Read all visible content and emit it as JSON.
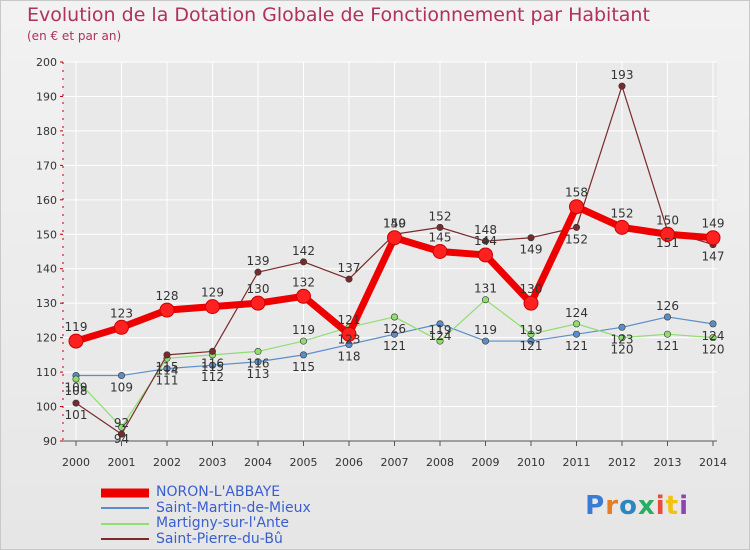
{
  "header": {
    "title": "Evolution de la Dotation Globale de Fonctionnement par Habitant",
    "subtitle": "(en € et par an)"
  },
  "brand": {
    "text": "Proxiti"
  },
  "chart_data": {
    "type": "line",
    "x": [
      2000,
      2001,
      2002,
      2003,
      2004,
      2005,
      2006,
      2007,
      2008,
      2009,
      2010,
      2011,
      2012,
      2013,
      2014
    ],
    "ylim": [
      90,
      200
    ],
    "yticks": [
      90,
      100,
      110,
      120,
      130,
      140,
      150,
      160,
      170,
      180,
      190,
      200
    ],
    "grid": true,
    "legend_position": "bottom-left",
    "series": [
      {
        "name": "NORON-L'ABBAYE",
        "color": "#ee0000",
        "values": [
          119,
          123,
          128,
          129,
          130,
          132,
          121,
          149,
          145,
          144,
          130,
          158,
          152,
          150,
          149
        ]
      },
      {
        "name": "Saint-Martin-de-Mieux",
        "color": "#5b8ec9",
        "values": [
          109,
          109,
          111,
          112,
          113,
          115,
          118,
          121,
          124,
          119,
          119,
          121,
          123,
          126,
          124
        ]
      },
      {
        "name": "Martigny-sur-l'Ante",
        "color": "#90dd70",
        "values": [
          108,
          94,
          114,
          115,
          116,
          119,
          123,
          126,
          119,
          131,
          121,
          124,
          120,
          121,
          120
        ]
      },
      {
        "name": "Saint-Pierre-du-Bû",
        "color": "#7a2a2a",
        "values": [
          101,
          92,
          115,
          116,
          139,
          142,
          137,
          150,
          152,
          148,
          149,
          152,
          193,
          151,
          147
        ]
      }
    ]
  }
}
